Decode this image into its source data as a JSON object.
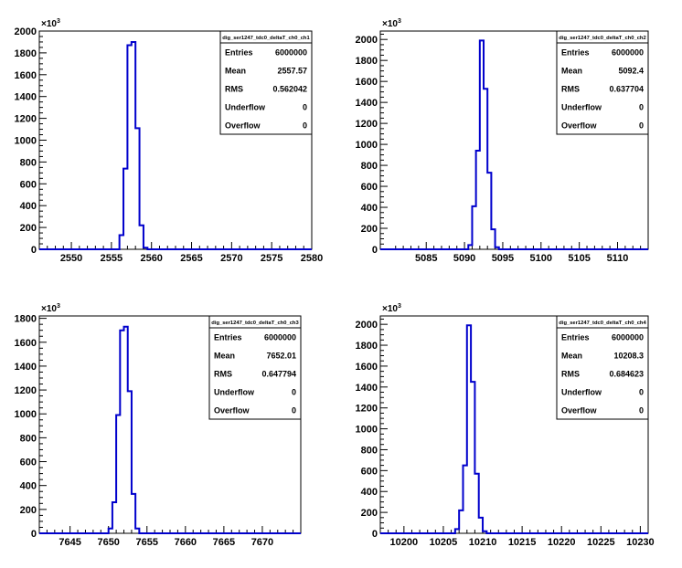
{
  "chart_data": [
    {
      "type": "bar",
      "title": "",
      "xlabel": "",
      "ylabel": "",
      "y_exponent_label": "×10³",
      "xlim": [
        2546,
        2580
      ],
      "ylim": [
        0,
        2000
      ],
      "x_ticks": [
        2550,
        2555,
        2560,
        2565,
        2570,
        2575,
        2580
      ],
      "y_ticks": [
        0,
        200,
        400,
        600,
        800,
        1000,
        1200,
        1400,
        1600,
        1800,
        2000
      ],
      "bin_width": 0.5,
      "bins": [
        {
          "x": 2556.0,
          "value": 130
        },
        {
          "x": 2556.5,
          "value": 740
        },
        {
          "x": 2557.0,
          "value": 1870
        },
        {
          "x": 2557.5,
          "value": 1900
        },
        {
          "x": 2558.0,
          "value": 1110
        },
        {
          "x": 2558.5,
          "value": 220
        },
        {
          "x": 2559.0,
          "value": 15
        }
      ],
      "stats": {
        "name": "dig_ser1247_tdc0_deltaT_ch0_ch1",
        "rows": [
          {
            "label": "Entries",
            "value": "6000000"
          },
          {
            "label": "Mean",
            "value": "2557.57"
          },
          {
            "label": "RMS",
            "value": "0.562042"
          },
          {
            "label": "Underflow",
            "value": "0"
          },
          {
            "label": "Overflow",
            "value": "0"
          }
        ]
      },
      "line_color": "#0000cc",
      "grid": false
    },
    {
      "type": "bar",
      "title": "",
      "xlabel": "",
      "ylabel": "",
      "y_exponent_label": "×10³",
      "xlim": [
        5079,
        5114
      ],
      "ylim": [
        0,
        2080
      ],
      "x_ticks": [
        5085,
        5090,
        5095,
        5100,
        5105,
        5110
      ],
      "y_ticks": [
        0,
        200,
        400,
        600,
        800,
        1000,
        1200,
        1400,
        1600,
        1800,
        2000
      ],
      "bin_width": 0.5,
      "bins": [
        {
          "x": 5090.5,
          "value": 40
        },
        {
          "x": 5091.0,
          "value": 410
        },
        {
          "x": 5091.5,
          "value": 940
        },
        {
          "x": 5092.0,
          "value": 1990
        },
        {
          "x": 5092.5,
          "value": 1530
        },
        {
          "x": 5093.0,
          "value": 730
        },
        {
          "x": 5093.5,
          "value": 190
        },
        {
          "x": 5094.0,
          "value": 20
        }
      ],
      "stats": {
        "name": "dig_ser1247_tdc0_deltaT_ch0_ch2",
        "rows": [
          {
            "label": "Entries",
            "value": "6000000"
          },
          {
            "label": "Mean",
            "value": "5092.4"
          },
          {
            "label": "RMS",
            "value": "0.637704"
          },
          {
            "label": "Underflow",
            "value": "0"
          },
          {
            "label": "Overflow",
            "value": "0"
          }
        ]
      },
      "line_color": "#0000cc",
      "grid": false
    },
    {
      "type": "bar",
      "title": "",
      "xlabel": "",
      "ylabel": "",
      "y_exponent_label": "×10³",
      "xlim": [
        7641,
        7675
      ],
      "ylim": [
        0,
        1820
      ],
      "x_ticks": [
        7645,
        7650,
        7655,
        7660,
        7665,
        7670
      ],
      "y_ticks": [
        0,
        200,
        400,
        600,
        800,
        1000,
        1200,
        1400,
        1600,
        1800
      ],
      "bin_width": 0.5,
      "bins": [
        {
          "x": 7650.0,
          "value": 40
        },
        {
          "x": 7650.5,
          "value": 260
        },
        {
          "x": 7651.0,
          "value": 990
        },
        {
          "x": 7651.5,
          "value": 1700
        },
        {
          "x": 7652.0,
          "value": 1730
        },
        {
          "x": 7652.5,
          "value": 1190
        },
        {
          "x": 7653.0,
          "value": 330
        },
        {
          "x": 7653.5,
          "value": 40
        }
      ],
      "stats": {
        "name": "dig_ser1247_tdc0_deltaT_ch0_ch3",
        "rows": [
          {
            "label": "Entries",
            "value": "6000000"
          },
          {
            "label": "Mean",
            "value": "7652.01"
          },
          {
            "label": "RMS",
            "value": "0.647794"
          },
          {
            "label": "Underflow",
            "value": "0"
          },
          {
            "label": "Overflow",
            "value": "0"
          }
        ]
      },
      "line_color": "#0000cc",
      "grid": false
    },
    {
      "type": "bar",
      "title": "",
      "xlabel": "",
      "ylabel": "",
      "y_exponent_label": "×10³",
      "xlim": [
        10197,
        10231
      ],
      "ylim": [
        0,
        2080
      ],
      "x_ticks": [
        10200,
        10205,
        10210,
        10215,
        10220,
        10225,
        10230
      ],
      "y_ticks": [
        0,
        200,
        400,
        600,
        800,
        1000,
        1200,
        1400,
        1600,
        1800,
        2000
      ],
      "bin_width": 0.5,
      "bins": [
        {
          "x": 10206.5,
          "value": 40
        },
        {
          "x": 10207.0,
          "value": 220
        },
        {
          "x": 10207.5,
          "value": 650
        },
        {
          "x": 10208.0,
          "value": 1990
        },
        {
          "x": 10208.5,
          "value": 1450
        },
        {
          "x": 10209.0,
          "value": 570
        },
        {
          "x": 10209.5,
          "value": 150
        },
        {
          "x": 10210.0,
          "value": 20
        }
      ],
      "stats": {
        "name": "dig_ser1247_tdc0_deltaT_ch0_ch4",
        "rows": [
          {
            "label": "Entries",
            "value": "6000000"
          },
          {
            "label": "Mean",
            "value": "10208.3"
          },
          {
            "label": "RMS",
            "value": "0.684623"
          },
          {
            "label": "Underflow",
            "value": "0"
          },
          {
            "label": "Overflow",
            "value": "0"
          }
        ]
      },
      "line_color": "#0000cc",
      "grid": false
    }
  ]
}
